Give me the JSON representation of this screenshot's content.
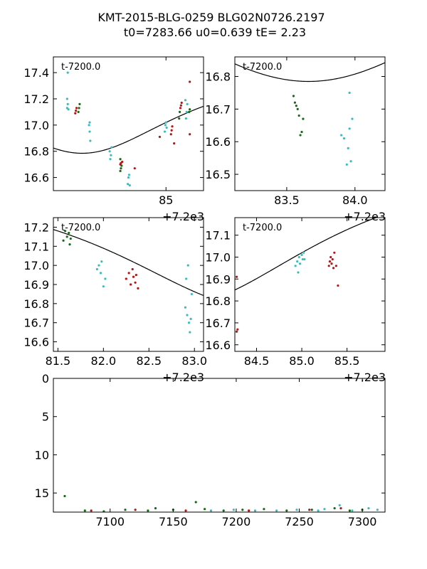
{
  "title": {
    "line1": "KMT-2015-BLG-0259 BLG02N0726.2197",
    "line2": "t0=7283.66 u0=0.639 tE=   2.23"
  },
  "colors": {
    "cyan": "#3cbcbf",
    "red": "#b01717",
    "green": "#156b15",
    "model": "#000000"
  },
  "chart_data": [
    {
      "type": "scatter",
      "panel": "top-left",
      "annotation": "t-7200.0",
      "xlim": [
        83.2,
        85.6
      ],
      "ylim": [
        17.52,
        16.5
      ],
      "x_ticks": [
        85
      ],
      "x_tick_labels": [
        "85"
      ],
      "y_ticks": [
        16.6,
        16.8,
        17.0,
        17.2,
        17.4
      ],
      "y_tick_labels": [
        "16.6",
        "16.8",
        "17.0",
        "17.2",
        "17.4"
      ],
      "offset_text": "+7.2e3",
      "model": "pspl",
      "series": [
        {
          "name": "cyan",
          "points": [
            [
              83.42,
              17.13
            ],
            [
              83.43,
              17.16
            ],
            [
              83.42,
              17.2
            ],
            [
              83.44,
              17.12
            ],
            [
              83.43,
              17.4
            ],
            [
              83.79,
              16.88
            ],
            [
              83.78,
              16.95
            ],
            [
              83.77,
              17.0
            ],
            [
              83.78,
              17.02
            ],
            [
              84.11,
              16.74
            ],
            [
              84.12,
              16.77
            ],
            [
              84.1,
              16.8
            ],
            [
              84.13,
              16.83
            ],
            [
              84.39,
              16.55
            ],
            [
              84.4,
              16.6
            ],
            [
              84.41,
              16.62
            ],
            [
              84.42,
              16.54
            ],
            [
              84.98,
              16.95
            ],
            [
              84.99,
              17.0
            ],
            [
              85.0,
              17.02
            ],
            [
              85.01,
              16.98
            ],
            [
              85.32,
              17.05
            ],
            [
              85.33,
              17.1
            ],
            [
              85.34,
              17.16
            ],
            [
              85.31,
              17.19
            ]
          ]
        },
        {
          "name": "red",
          "points": [
            [
              83.55,
              17.09
            ],
            [
              83.56,
              17.11
            ],
            [
              83.57,
              17.13
            ],
            [
              84.27,
              16.7
            ],
            [
              84.28,
              16.71
            ],
            [
              84.3,
              16.72
            ],
            [
              84.5,
              16.67
            ],
            [
              84.9,
              16.91
            ],
            [
              85.08,
              16.93
            ],
            [
              85.09,
              16.96
            ],
            [
              85.1,
              16.99
            ],
            [
              85.13,
              16.86
            ],
            [
              85.23,
              17.13
            ],
            [
              85.24,
              17.15
            ],
            [
              85.25,
              17.17
            ],
            [
              85.38,
              16.93
            ],
            [
              85.38,
              17.33
            ]
          ]
        },
        {
          "name": "green",
          "points": [
            [
              83.6,
              17.1
            ],
            [
              83.61,
              17.13
            ],
            [
              83.62,
              17.16
            ],
            [
              84.27,
              16.65
            ],
            [
              84.28,
              16.67
            ],
            [
              84.29,
              16.69
            ],
            [
              84.27,
              16.74
            ],
            [
              85.21,
              17.05
            ],
            [
              85.22,
              17.1
            ],
            [
              85.37,
              17.1
            ],
            [
              85.38,
              17.12
            ]
          ]
        }
      ]
    },
    {
      "type": "scatter",
      "panel": "top-right",
      "annotation": "t-7200.0",
      "xlim": [
        83.12,
        84.22
      ],
      "ylim": [
        16.86,
        16.45
      ],
      "x_ticks": [
        83.5,
        84.0
      ],
      "x_tick_labels": [
        "83.5",
        "84.0"
      ],
      "y_ticks": [
        16.5,
        16.6,
        16.7,
        16.8
      ],
      "y_tick_labels": [
        "16.5",
        "16.6",
        "16.7",
        "16.8"
      ],
      "offset_text": "+7.2e3",
      "model": "pspl",
      "series": [
        {
          "name": "green",
          "points": [
            [
              83.55,
              16.74
            ],
            [
              83.56,
              16.72
            ],
            [
              83.57,
              16.71
            ],
            [
              83.58,
              16.7
            ],
            [
              83.59,
              16.68
            ],
            [
              83.6,
              16.62
            ],
            [
              83.61,
              16.63
            ],
            [
              83.62,
              16.67
            ]
          ]
        },
        {
          "name": "cyan",
          "points": [
            [
              83.9,
              16.62
            ],
            [
              83.92,
              16.61
            ],
            [
              83.94,
              16.53
            ],
            [
              83.95,
              16.58
            ],
            [
              83.96,
              16.64
            ],
            [
              83.97,
              16.54
            ],
            [
              83.96,
              16.75
            ],
            [
              83.98,
              16.67
            ]
          ]
        }
      ]
    },
    {
      "type": "scatter",
      "panel": "middle-left",
      "annotation": "t-7200.0",
      "xlim": [
        81.45,
        83.1
      ],
      "ylim": [
        17.25,
        16.55
      ],
      "x_ticks": [
        81.5,
        82.0,
        82.5,
        83.0
      ],
      "x_tick_labels": [
        "81.5",
        "82.0",
        "82.5",
        "83.0"
      ],
      "y_ticks": [
        16.6,
        16.7,
        16.8,
        16.9,
        17.0,
        17.1,
        17.2
      ],
      "y_tick_labels": [
        "16.6",
        "16.7",
        "16.8",
        "16.9",
        "17.0",
        "17.1",
        "17.2"
      ],
      "offset_text": "+7.2e3",
      "model": "pspl",
      "series": [
        {
          "name": "green",
          "points": [
            [
              81.56,
              17.13
            ],
            [
              81.58,
              17.18
            ],
            [
              81.6,
              17.15
            ],
            [
              81.62,
              17.17
            ],
            [
              81.63,
              17.11
            ],
            [
              81.64,
              17.14
            ]
          ]
        },
        {
          "name": "cyan",
          "points": [
            [
              81.93,
              16.98
            ],
            [
              81.95,
              17.0
            ],
            [
              81.97,
              16.96
            ],
            [
              81.98,
              17.02
            ],
            [
              82.0,
              16.89
            ],
            [
              82.02,
              16.93
            ],
            [
              82.9,
              16.78
            ],
            [
              82.92,
              16.74
            ],
            [
              82.94,
              16.7
            ],
            [
              82.96,
              16.72
            ],
            [
              82.95,
              16.65
            ],
            [
              82.91,
              16.93
            ],
            [
              82.93,
              17.0
            ],
            [
              82.97,
              16.85
            ]
          ]
        },
        {
          "name": "red",
          "points": [
            [
              82.25,
              16.93
            ],
            [
              82.28,
              16.96
            ],
            [
              82.3,
              16.9
            ],
            [
              82.32,
              16.98
            ],
            [
              82.33,
              16.94
            ],
            [
              82.35,
              16.91
            ],
            [
              82.36,
              16.95
            ],
            [
              82.38,
              16.88
            ]
          ]
        }
      ]
    },
    {
      "type": "scatter",
      "panel": "middle-right",
      "annotation": "t-7200.0",
      "xlim": [
        84.26,
        85.92
      ],
      "ylim": [
        17.18,
        16.57
      ],
      "x_ticks": [
        84.5,
        85.0,
        85.5
      ],
      "x_tick_labels": [
        "84.5",
        "85.0",
        "85.5"
      ],
      "y_ticks": [
        16.6,
        16.7,
        16.8,
        16.9,
        17.0,
        17.1
      ],
      "y_tick_labels": [
        "16.6",
        "16.7",
        "16.8",
        "16.9",
        "17.0",
        "17.1"
      ],
      "offset_text": "+7.2e3",
      "model": "pspl",
      "series": [
        {
          "name": "red",
          "points": [
            [
              84.28,
              16.66
            ],
            [
              84.29,
              16.67
            ],
            [
              84.28,
              16.91
            ],
            [
              85.3,
              16.96
            ],
            [
              85.31,
              16.98
            ],
            [
              85.32,
              17.0
            ],
            [
              85.33,
              16.97
            ],
            [
              85.34,
              16.99
            ],
            [
              85.35,
              16.95
            ],
            [
              85.36,
              17.02
            ],
            [
              85.38,
              16.96
            ],
            [
              85.4,
              16.87
            ]
          ]
        },
        {
          "name": "cyan",
          "points": [
            [
              84.93,
              16.96
            ],
            [
              84.95,
              16.98
            ],
            [
              84.96,
              16.93
            ],
            [
              84.97,
              17.0
            ],
            [
              84.98,
              16.97
            ],
            [
              85.0,
              17.01
            ],
            [
              85.01,
              16.99
            ],
            [
              85.02,
              17.02
            ],
            [
              85.03,
              16.99
            ]
          ]
        }
      ]
    },
    {
      "type": "scatter",
      "panel": "bottom",
      "xlim": [
        7055,
        7318
      ],
      "ylim": [
        0,
        17.5
      ],
      "x_ticks": [
        7100,
        7150,
        7200,
        7250,
        7300
      ],
      "x_tick_labels": [
        "7100",
        "7150",
        "7200",
        "7250",
        "7300"
      ],
      "y_ticks": [
        0,
        5,
        10,
        15
      ],
      "y_tick_labels": [
        "0",
        "5",
        "10",
        "15"
      ],
      "series": [
        {
          "name": "green",
          "points": [
            [
              7064,
              15.4
            ],
            [
              7080,
              17.3
            ],
            [
              7095,
              17.4
            ],
            [
              7112,
              17.2
            ],
            [
              7130,
              17.3
            ],
            [
              7136,
              17.0
            ],
            [
              7150,
              17.2
            ],
            [
              7168,
              16.2
            ],
            [
              7175,
              17.1
            ],
            [
              7190,
              17.3
            ],
            [
              7205,
              17.2
            ],
            [
              7222,
              17.1
            ],
            [
              7240,
              17.3
            ],
            [
              7260,
              17.2
            ],
            [
              7278,
              17.0
            ],
            [
              7290,
              17.3
            ],
            [
              7300,
              17.2
            ]
          ]
        },
        {
          "name": "red",
          "points": [
            [
              7085,
              17.3
            ],
            [
              7120,
              17.2
            ],
            [
              7160,
              17.3
            ],
            [
              7210,
              17.3
            ],
            [
              7258,
              17.2
            ],
            [
              7283,
              17.0
            ]
          ]
        },
        {
          "name": "cyan",
          "points": [
            [
              7180,
              17.3
            ],
            [
              7198,
              17.2
            ],
            [
              7215,
              17.3
            ],
            [
              7232,
              17.3
            ],
            [
              7248,
              17.2
            ],
            [
              7265,
              17.3
            ],
            [
              7270,
              17.1
            ],
            [
              7282,
              16.6
            ],
            [
              7292,
              17.3
            ],
            [
              7305,
              17.0
            ],
            [
              7312,
              17.2
            ]
          ]
        }
      ]
    }
  ]
}
